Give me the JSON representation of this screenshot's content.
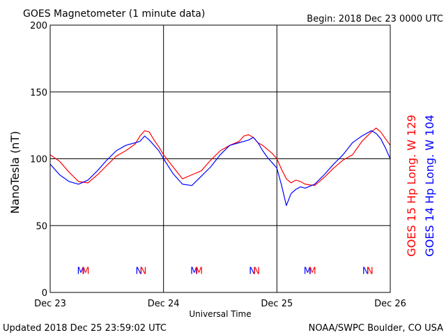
{
  "header": {
    "title": "GOES Magnetometer (1 minute data)",
    "begin": "Begin:  2018 Dec 23 0000 UTC"
  },
  "footer": {
    "updated": "Updated 2018 Dec 25 23:59:02 UTC",
    "credit": "NOAA/SWPC Boulder, CO USA"
  },
  "colors": {
    "red": "#ff0000",
    "blue": "#0000ff",
    "axis": "#000000"
  },
  "chart_data": {
    "type": "line",
    "title": "GOES Magnetometer (1 minute data)",
    "xlabel": "Universal Time",
    "ylabel": "NanoTesla (nT)",
    "xlim": [
      0,
      72
    ],
    "ylim": [
      0,
      200
    ],
    "grid": true,
    "y_ticks": [
      0,
      50,
      100,
      150,
      200
    ],
    "x_tick_labels": [
      {
        "x": 0,
        "label": "Dec 23"
      },
      {
        "x": 24,
        "label": "Dec 24"
      },
      {
        "x": 48,
        "label": "Dec 25"
      },
      {
        "x": 72,
        "label": "Dec 26"
      }
    ],
    "series": [
      {
        "name": "GOES 15 Hp  Long. W 129",
        "color": "#ff0000",
        "x": [
          0,
          2,
          4,
          6,
          8,
          10,
          12,
          14,
          16,
          18,
          19,
          20,
          21,
          22,
          23,
          24,
          26,
          28,
          30,
          32,
          34,
          36,
          38,
          40,
          41,
          42,
          43,
          44,
          45,
          46,
          47,
          48,
          49,
          50,
          51,
          52,
          53,
          54,
          56,
          58,
          60,
          62,
          64,
          66,
          68,
          69,
          70,
          71,
          72
        ],
        "values": [
          103,
          98,
          90,
          83,
          82,
          88,
          95,
          102,
          106,
          111,
          117,
          121,
          120,
          114,
          109,
          103,
          94,
          85,
          88,
          91,
          99,
          106,
          110,
          113,
          117,
          118,
          116,
          112,
          110,
          107,
          104,
          100,
          92,
          85,
          82,
          84,
          83,
          81,
          80,
          86,
          93,
          99,
          103,
          113,
          120,
          123,
          120,
          115,
          110
        ]
      },
      {
        "name": "GOES 14 Hp  Long. W 104",
        "color": "#0000ff",
        "x": [
          0,
          2,
          4,
          6,
          8,
          10,
          12,
          14,
          16,
          18,
          19,
          20,
          21,
          22,
          23,
          24,
          26,
          28,
          30,
          32,
          34,
          36,
          38,
          40,
          41,
          42,
          43,
          44,
          45,
          46,
          47,
          48,
          49,
          50,
          51,
          52,
          53,
          54,
          56,
          58,
          60,
          62,
          64,
          66,
          68,
          69,
          70,
          71,
          72
        ],
        "values": [
          96,
          88,
          83,
          81,
          84,
          91,
          99,
          106,
          110,
          112,
          113,
          117,
          114,
          110,
          106,
          100,
          89,
          81,
          80,
          87,
          94,
          103,
          110,
          112,
          113,
          114,
          116,
          112,
          106,
          101,
          97,
          93,
          80,
          65,
          74,
          77,
          79,
          78,
          81,
          88,
          96,
          103,
          112,
          117,
          121,
          119,
          115,
          108,
          100
        ]
      }
    ],
    "annotations": [
      {
        "text": "M",
        "x": 6.5,
        "y": 16,
        "color": "#0000ff"
      },
      {
        "text": "M",
        "x": 7.5,
        "y": 16,
        "color": "#ff0000"
      },
      {
        "text": "N",
        "x": 18.8,
        "y": 16,
        "color": "#0000ff"
      },
      {
        "text": "N",
        "x": 19.7,
        "y": 16,
        "color": "#ff0000"
      },
      {
        "text": "M",
        "x": 30.5,
        "y": 16,
        "color": "#0000ff"
      },
      {
        "text": "M",
        "x": 31.5,
        "y": 16,
        "color": "#ff0000"
      },
      {
        "text": "N",
        "x": 42.8,
        "y": 16,
        "color": "#0000ff"
      },
      {
        "text": "N",
        "x": 43.7,
        "y": 16,
        "color": "#ff0000"
      },
      {
        "text": "M",
        "x": 54.5,
        "y": 16,
        "color": "#0000ff"
      },
      {
        "text": "M",
        "x": 55.5,
        "y": 16,
        "color": "#ff0000"
      },
      {
        "text": "N",
        "x": 66.8,
        "y": 16,
        "color": "#0000ff"
      },
      {
        "text": "N",
        "x": 67.7,
        "y": 16,
        "color": "#ff0000"
      }
    ]
  }
}
